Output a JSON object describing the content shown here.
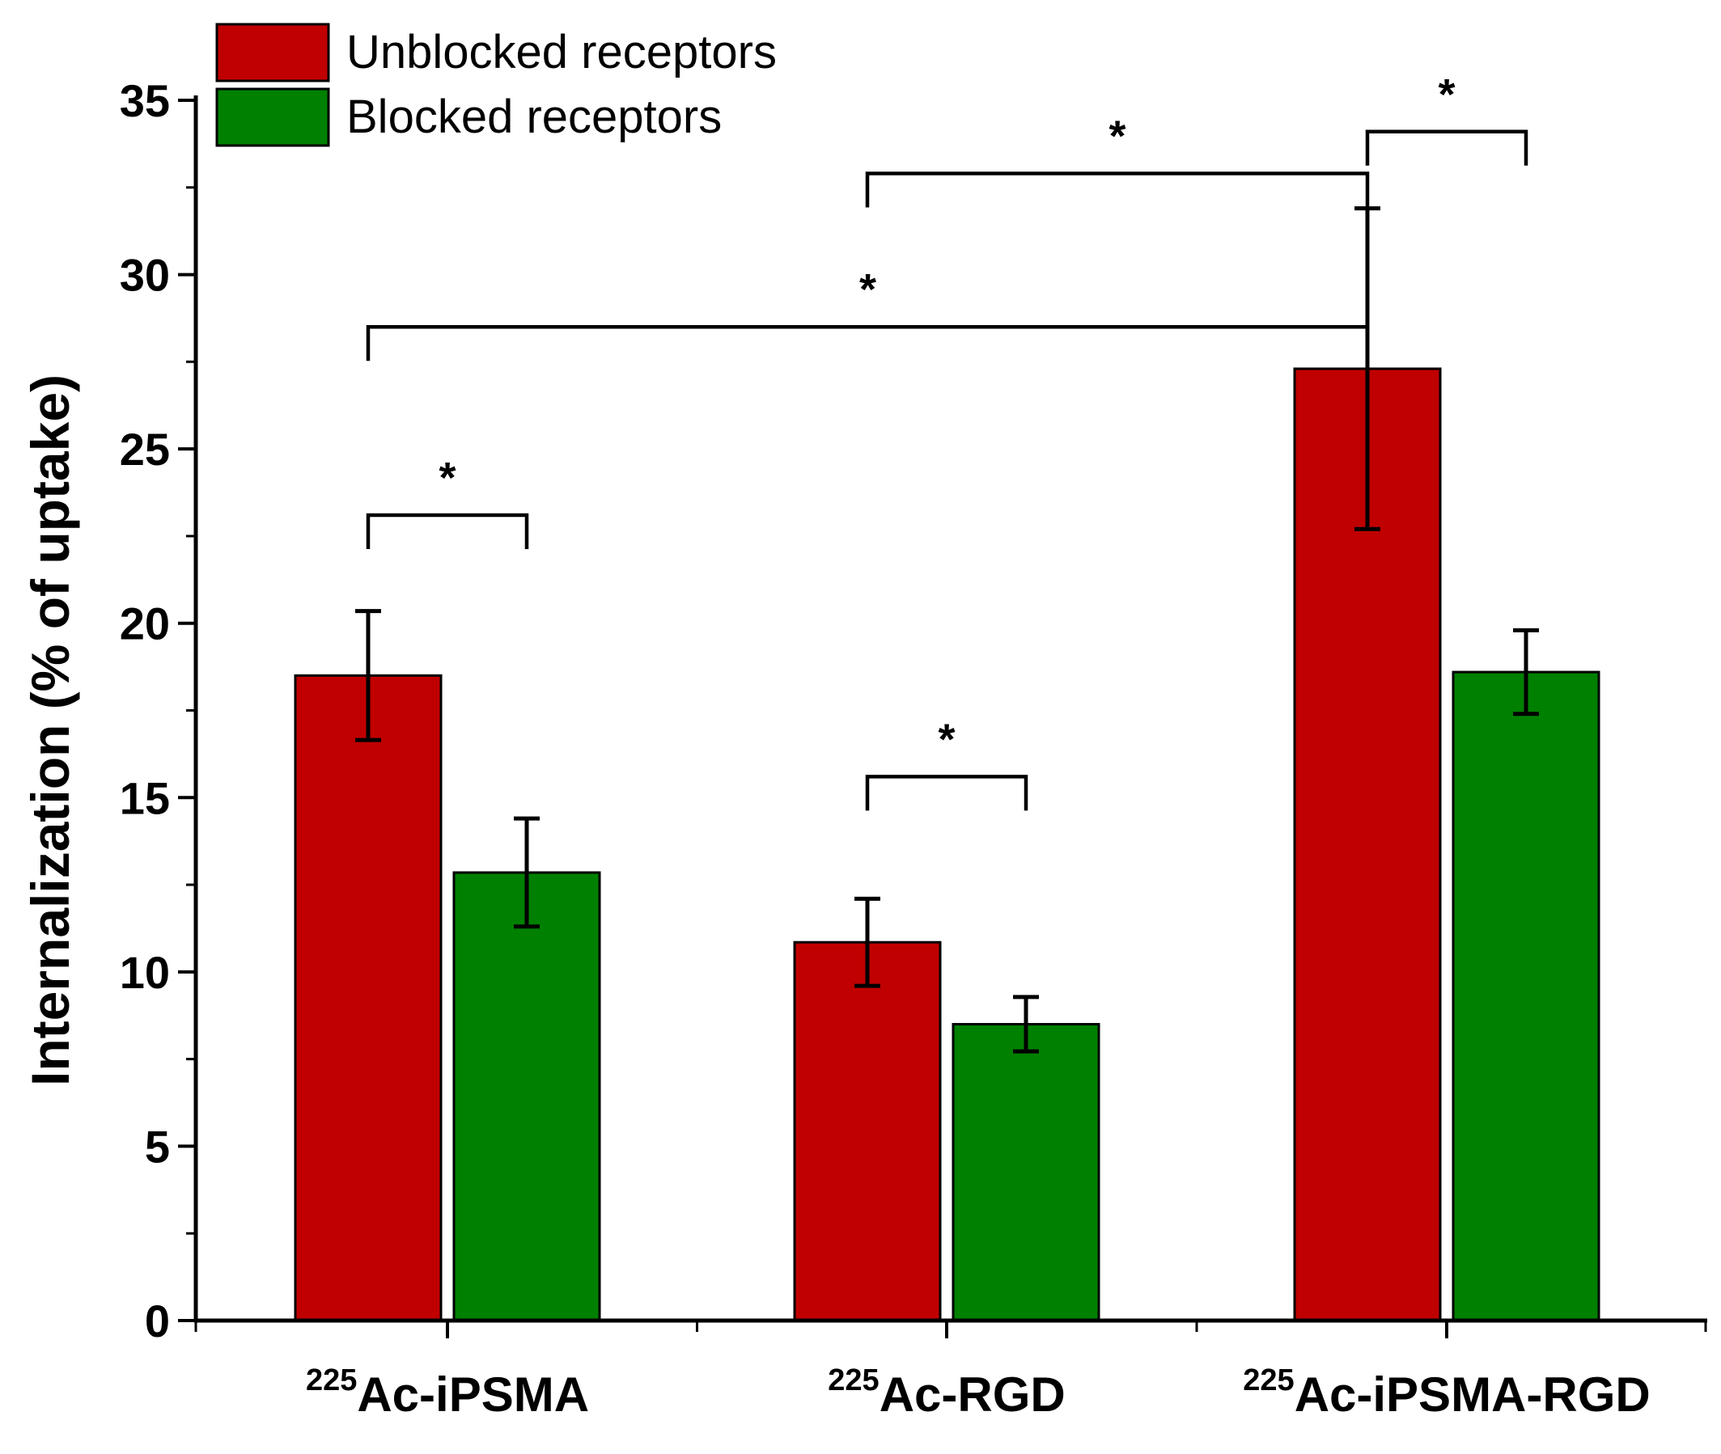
{
  "chart_data": {
    "type": "bar",
    "title": "",
    "xlabel": "",
    "ylabel": "Internalization (% of uptake)",
    "ylim": [
      0,
      35
    ],
    "yticks": [
      0,
      5,
      10,
      15,
      20,
      25,
      30,
      35
    ],
    "categories": [
      {
        "sup": "225",
        "label": "Ac-iPSMA"
      },
      {
        "sup": "225",
        "label": "Ac-RGD"
      },
      {
        "sup": "225",
        "label": "Ac-iPSMA-RGD"
      }
    ],
    "series": [
      {
        "name": "Unblocked receptors",
        "color": "#c00000",
        "values": [
          18.5,
          10.85,
          27.3
        ],
        "errors": [
          1.85,
          1.25,
          4.6
        ]
      },
      {
        "name": "Blocked receptors",
        "color": "#008000",
        "values": [
          12.85,
          8.5,
          18.6
        ],
        "errors": [
          1.55,
          0.78,
          1.2
        ]
      }
    ],
    "legend_position": "top-left",
    "significance": [
      {
        "label": "*",
        "from": {
          "category": 0,
          "series": 0
        },
        "to": {
          "category": 0,
          "series": 1
        },
        "level": 23.1
      },
      {
        "label": "*",
        "from": {
          "category": 1,
          "series": 0
        },
        "to": {
          "category": 1,
          "series": 1
        },
        "level": 15.6
      },
      {
        "label": "*",
        "from": {
          "category": 0,
          "series": 0
        },
        "to": {
          "category": 2,
          "series": 0
        },
        "level": 28.5
      },
      {
        "label": "*",
        "from": {
          "category": 1,
          "series": 0
        },
        "to": {
          "category": 2,
          "series": 0
        },
        "level": 32.9
      },
      {
        "label": "*",
        "from": {
          "category": 2,
          "series": 0
        },
        "to": {
          "category": 2,
          "series": 1
        },
        "level": 34.1
      }
    ]
  }
}
